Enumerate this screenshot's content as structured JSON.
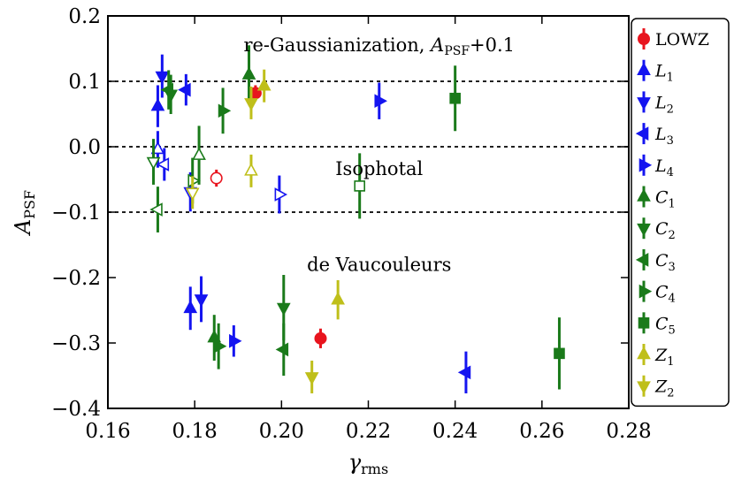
{
  "chart_data": {
    "type": "scatter",
    "xlabel_main": "γ",
    "xlabel_sub": "rms",
    "ylabel_main": "A",
    "ylabel_sub": "PSF",
    "xlim": [
      0.16,
      0.28
    ],
    "ylim": [
      -0.4,
      0.2
    ],
    "x_ticks": [
      0.16,
      0.18,
      0.2,
      0.22,
      0.24,
      0.26,
      0.28
    ],
    "x_tick_labels": [
      "0.16",
      "0.18",
      "0.20",
      "0.22",
      "0.24",
      "0.26",
      "0.28"
    ],
    "y_ticks": [
      -0.4,
      -0.3,
      -0.2,
      -0.1,
      0.0,
      0.1,
      0.2
    ],
    "y_tick_labels": [
      "−0.4",
      "−0.3",
      "−0.2",
      "−0.1",
      "0.0",
      "0.1",
      "0.2"
    ],
    "reference_lines_y": [
      0.1,
      0.0,
      -0.1
    ],
    "annotations": [
      {
        "id": "regauss",
        "text": "re-Gaussianization, ",
        "math_main": "A",
        "math_sub": "PSF",
        "math_tail": "+0.1",
        "x": 0.2225,
        "y": 0.146
      },
      {
        "id": "iso",
        "text": "Isophotal",
        "x": 0.2225,
        "y": -0.043
      },
      {
        "id": "dev",
        "text": "de Vaucouleurs",
        "x": 0.2225,
        "y": -0.19
      }
    ],
    "legend": {
      "position": "right-outside",
      "entries": [
        {
          "label": "LOWZ",
          "main": "LOWZ",
          "sub": "",
          "color": "#e8141e",
          "marker": "circle"
        },
        {
          "label": "L1",
          "main": "L",
          "sub": "1",
          "color": "#1414f0",
          "marker": "tri-up"
        },
        {
          "label": "L2",
          "main": "L",
          "sub": "2",
          "color": "#1414f0",
          "marker": "tri-down"
        },
        {
          "label": "L3",
          "main": "L",
          "sub": "3",
          "color": "#1414f0",
          "marker": "tri-left"
        },
        {
          "label": "L4",
          "main": "L",
          "sub": "4",
          "color": "#1414f0",
          "marker": "tri-right"
        },
        {
          "label": "C1",
          "main": "C",
          "sub": "1",
          "color": "#1a7a1a",
          "marker": "tri-up"
        },
        {
          "label": "C2",
          "main": "C",
          "sub": "2",
          "color": "#1a7a1a",
          "marker": "tri-down"
        },
        {
          "label": "C3",
          "main": "C",
          "sub": "3",
          "color": "#1a7a1a",
          "marker": "tri-left"
        },
        {
          "label": "C4",
          "main": "C",
          "sub": "4",
          "color": "#1a7a1a",
          "marker": "tri-right"
        },
        {
          "label": "C5",
          "main": "C",
          "sub": "5",
          "color": "#1a7a1a",
          "marker": "square"
        },
        {
          "label": "Z1",
          "main": "Z",
          "sub": "1",
          "color": "#bfbf1a",
          "marker": "tri-up"
        },
        {
          "label": "Z2",
          "main": "Z",
          "sub": "2",
          "color": "#bfbf1a",
          "marker": "tri-down"
        }
      ]
    },
    "series": [
      {
        "name": "LOWZ",
        "color": "#e8141e",
        "marker": "circle",
        "points": [
          {
            "group": "regauss",
            "x": 0.194,
            "y": 0.082,
            "err": 0.012,
            "filled": true
          },
          {
            "group": "iso",
            "x": 0.185,
            "y": -0.048,
            "err": 0.013,
            "filled": false
          },
          {
            "group": "dev",
            "x": 0.209,
            "y": -0.293,
            "err": 0.015,
            "filled": true
          }
        ]
      },
      {
        "name": "L1",
        "color": "#1414f0",
        "marker": "tri-up",
        "points": [
          {
            "group": "regauss",
            "x": 0.1715,
            "y": 0.062,
            "err": 0.032,
            "filled": true
          },
          {
            "group": "iso",
            "x": 0.1715,
            "y": -0.004,
            "err": 0.028,
            "filled": false
          },
          {
            "group": "dev",
            "x": 0.179,
            "y": -0.247,
            "err": 0.033,
            "filled": true
          }
        ]
      },
      {
        "name": "L2",
        "color": "#1414f0",
        "marker": "tri-down",
        "points": [
          {
            "group": "regauss",
            "x": 0.1725,
            "y": 0.108,
            "err": 0.033,
            "filled": true
          },
          {
            "group": "iso",
            "x": 0.179,
            "y": -0.069,
            "err": 0.03,
            "filled": false
          },
          {
            "group": "dev",
            "x": 0.1815,
            "y": -0.233,
            "err": 0.035,
            "filled": true
          }
        ]
      },
      {
        "name": "L3",
        "color": "#1414f0",
        "marker": "tri-left",
        "points": [
          {
            "group": "regauss",
            "x": 0.178,
            "y": 0.087,
            "err": 0.024,
            "filled": true
          },
          {
            "group": "iso",
            "x": 0.173,
            "y": -0.027,
            "err": 0.025,
            "filled": false
          },
          {
            "group": "dev",
            "x": 0.2425,
            "y": -0.345,
            "err": 0.032,
            "filled": true
          }
        ]
      },
      {
        "name": "L4",
        "color": "#1414f0",
        "marker": "tri-right",
        "points": [
          {
            "group": "regauss",
            "x": 0.2225,
            "y": 0.07,
            "err": 0.028,
            "filled": true
          },
          {
            "group": "iso",
            "x": 0.1995,
            "y": -0.073,
            "err": 0.029,
            "filled": false
          },
          {
            "group": "dev",
            "x": 0.189,
            "y": -0.297,
            "err": 0.024,
            "filled": true
          }
        ]
      },
      {
        "name": "C1",
        "color": "#1a7a1a",
        "marker": "tri-up",
        "points": [
          {
            "group": "regauss",
            "x": 0.1925,
            "y": 0.11,
            "err": 0.045,
            "filled": true
          },
          {
            "group": "iso",
            "x": 0.181,
            "y": -0.013,
            "err": 0.045,
            "filled": false
          },
          {
            "group": "dev",
            "x": 0.1845,
            "y": -0.292,
            "err": 0.035,
            "filled": true
          }
        ]
      },
      {
        "name": "C2",
        "color": "#1a7a1a",
        "marker": "tri-down",
        "points": [
          {
            "group": "regauss",
            "x": 0.1745,
            "y": 0.08,
            "err": 0.03,
            "filled": true
          },
          {
            "group": "iso",
            "x": 0.1705,
            "y": -0.023,
            "err": 0.035,
            "filled": false
          },
          {
            "group": "dev",
            "x": 0.2005,
            "y": -0.246,
            "err": 0.05,
            "filled": true
          }
        ]
      },
      {
        "name": "C3",
        "color": "#1a7a1a",
        "marker": "tri-left",
        "points": [
          {
            "group": "regauss",
            "x": 0.174,
            "y": 0.087,
            "err": 0.03,
            "filled": true
          },
          {
            "group": "iso",
            "x": 0.1715,
            "y": -0.096,
            "err": 0.035,
            "filled": false
          },
          {
            "group": "dev",
            "x": 0.2005,
            "y": -0.31,
            "err": 0.04,
            "filled": true
          }
        ]
      },
      {
        "name": "C4",
        "color": "#1a7a1a",
        "marker": "tri-right",
        "points": [
          {
            "group": "regauss",
            "x": 0.1865,
            "y": 0.055,
            "err": 0.035,
            "filled": true
          },
          {
            "group": "iso",
            "x": 0.1795,
            "y": -0.052,
            "err": 0.035,
            "filled": false
          },
          {
            "group": "dev",
            "x": 0.1855,
            "y": -0.305,
            "err": 0.035,
            "filled": true
          }
        ]
      },
      {
        "name": "C5",
        "color": "#1a7a1a",
        "marker": "square",
        "points": [
          {
            "group": "regauss",
            "x": 0.24,
            "y": 0.074,
            "err": 0.05,
            "filled": true
          },
          {
            "group": "iso",
            "x": 0.218,
            "y": -0.06,
            "err": 0.05,
            "filled": false
          },
          {
            "group": "dev",
            "x": 0.264,
            "y": -0.316,
            "err": 0.055,
            "filled": true
          }
        ]
      },
      {
        "name": "Z1",
        "color": "#bfbf1a",
        "marker": "tri-up",
        "points": [
          {
            "group": "regauss",
            "x": 0.196,
            "y": 0.093,
            "err": 0.025,
            "filled": true
          },
          {
            "group": "iso",
            "x": 0.193,
            "y": -0.037,
            "err": 0.025,
            "filled": false
          },
          {
            "group": "dev",
            "x": 0.213,
            "y": -0.234,
            "err": 0.03,
            "filled": true
          }
        ]
      },
      {
        "name": "Z2",
        "color": "#bfbf1a",
        "marker": "tri-down",
        "points": [
          {
            "group": "regauss",
            "x": 0.193,
            "y": 0.067,
            "err": 0.025,
            "filled": true
          },
          {
            "group": "iso",
            "x": 0.1795,
            "y": -0.07,
            "err": 0.025,
            "filled": false
          },
          {
            "group": "dev",
            "x": 0.207,
            "y": -0.352,
            "err": 0.025,
            "filled": true
          }
        ]
      }
    ]
  }
}
